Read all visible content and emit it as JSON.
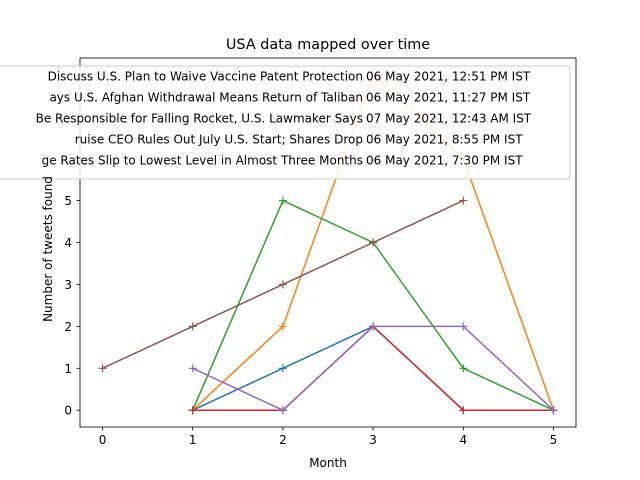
{
  "chart_data": {
    "type": "line",
    "title": "USA data mapped over time",
    "xlabel": "Month",
    "ylabel": "Number of tweets found",
    "xlim": [
      -0.25,
      5.25
    ],
    "ylim": [
      -0.4,
      8.4
    ],
    "xticks": [
      0,
      1,
      2,
      3,
      4,
      5
    ],
    "yticks": [
      0,
      1,
      2,
      3,
      4,
      5
    ],
    "grid": false,
    "legend_placement": "top-center",
    "marker": "plus",
    "series": [
      {
        "name": "Discuss U.S. Plan to Waive Vaccine Patent Protection06 May 2021, 12:51 PM IST",
        "color": "#1f77b4",
        "x": [
          1,
          2,
          3,
          4,
          5
        ],
        "y": [
          0,
          1,
          2,
          0,
          0
        ]
      },
      {
        "name": "ays U.S. Afghan Withdrawal Means Return of Taliban06 May 2021, 11:27 PM IST",
        "color": "#ff7f0e",
        "x": [
          1,
          2,
          3,
          4,
          5
        ],
        "y": [
          0,
          2,
          8,
          6,
          0
        ]
      },
      {
        "name": "Be Responsible for Falling Rocket, U.S. Lawmaker Says07 May 2021, 12:43 AM IST",
        "color": "#2ca02c",
        "x": [
          1,
          2,
          3,
          4,
          5
        ],
        "y": [
          0,
          5,
          4,
          1,
          0
        ]
      },
      {
        "name": "ruise CEO Rules Out July U.S. Start; Shares Drop06 May 2021, 8:55 PM IST",
        "color": "#d62728",
        "x": [
          1,
          2,
          3,
          4,
          5
        ],
        "y": [
          0,
          0,
          2,
          0,
          0
        ]
      },
      {
        "name": "ge Rates Slip to Lowest Level in Almost Three Months06 May 2021, 7:30 PM IST",
        "color": "#9467bd",
        "x": [
          1,
          2,
          3,
          4,
          5
        ],
        "y": [
          1,
          0,
          2,
          2,
          0
        ]
      },
      {
        "name": "",
        "color": "#8c564b",
        "x": [
          0,
          1,
          2,
          3,
          4
        ],
        "y": [
          1,
          2,
          3,
          4,
          5
        ]
      }
    ]
  }
}
